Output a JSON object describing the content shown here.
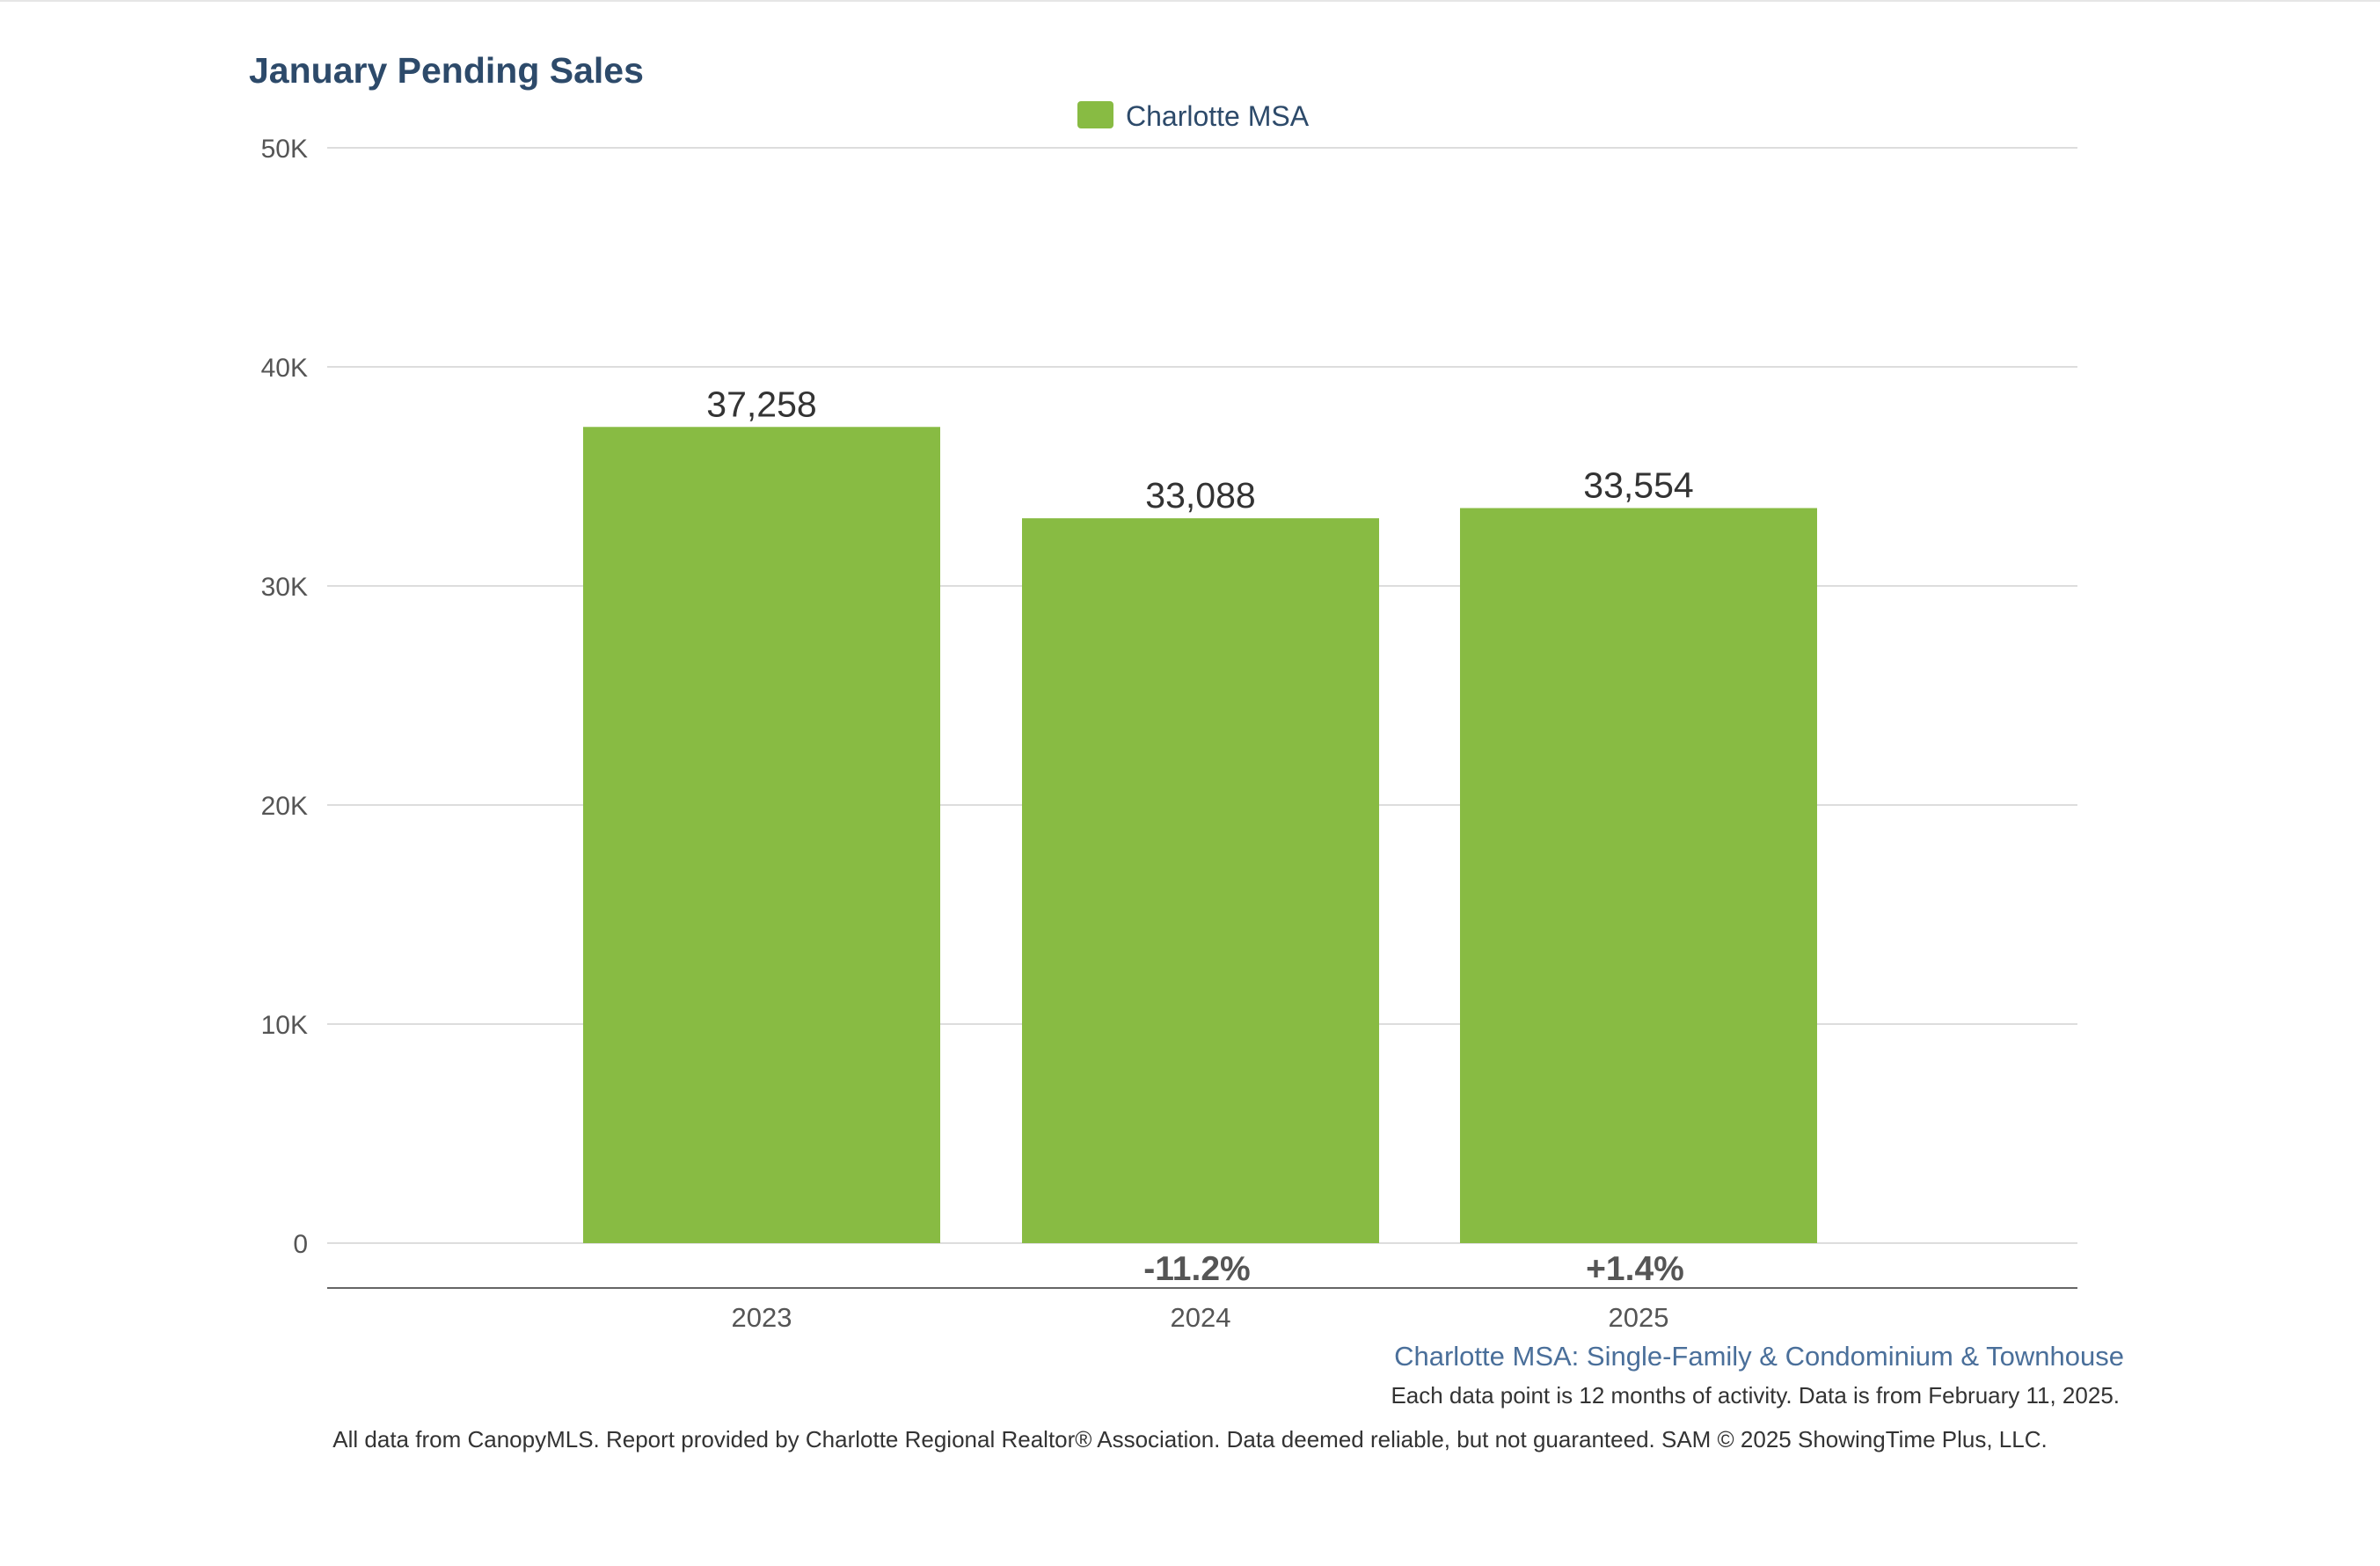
{
  "chart_data": {
    "type": "bar",
    "title": "January Pending Sales",
    "categories": [
      "2023",
      "2024",
      "2025"
    ],
    "series": [
      {
        "name": "Charlotte MSA",
        "values": [
          37258,
          33088,
          33554
        ],
        "value_labels": [
          "37,258",
          "33,088",
          "33,554"
        ]
      }
    ],
    "change_labels": [
      "",
      "-11.2%",
      "+1.4%"
    ],
    "ylim": [
      0,
      50000
    ],
    "yticks": [
      0,
      10000,
      20000,
      30000,
      40000,
      50000
    ],
    "ytick_labels": [
      "0",
      "10K",
      "20K",
      "30K",
      "40K",
      "50K"
    ],
    "xlabel": "",
    "ylabel": "",
    "grid": true,
    "legend_position": "top-center",
    "colors": {
      "bar": "#88bb43",
      "title": "#2d4a6a",
      "legend_text": "#2d4a6a",
      "subtitle": "#4a6f9a",
      "tick_text": "#555555",
      "value_text": "#333333",
      "change_text": "#555555",
      "gridline": "#dddddd",
      "axis_line": "#666666",
      "footnote_text": "#333333"
    }
  },
  "footer": {
    "subtitle": "Charlotte MSA: Single-Family & Condominium & Townhouse",
    "note": "Each data point is 12 months of activity. Data is from February 11, 2025.",
    "disclaimer": "All data from CanopyMLS. Report provided by Charlotte Regional Realtor® Association. Data deemed reliable, but not guaranteed. SAM © 2025 ShowingTime Plus, LLC."
  }
}
